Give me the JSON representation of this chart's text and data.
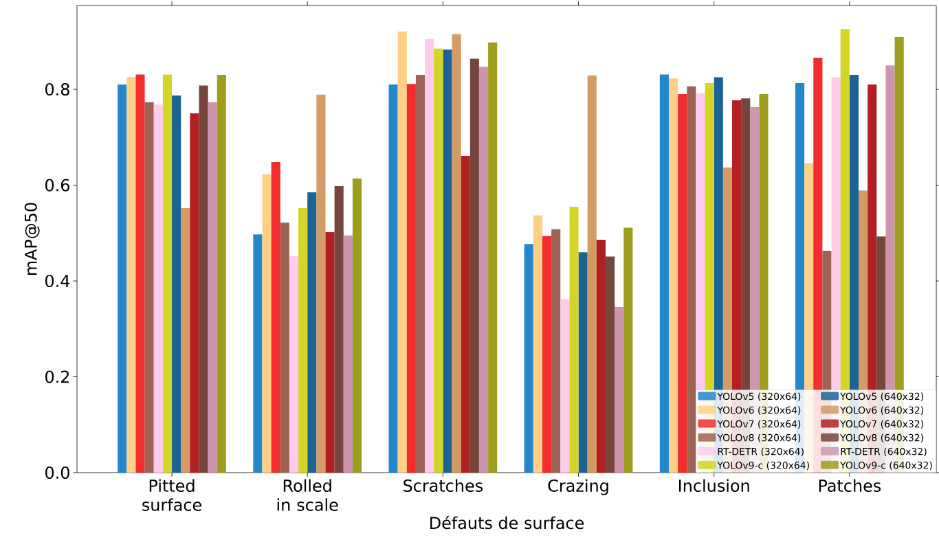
{
  "chart_data": {
    "type": "bar",
    "xlabel": "Défauts de surface",
    "ylabel": "mAP@50",
    "categories": [
      "Pitted surface",
      "Rolled in scale",
      "Scratches",
      "Crazing",
      "Inclusion",
      "Patches"
    ],
    "ylim": [
      0,
      0.975
    ],
    "yticks": [
      {
        "value": 0,
        "label": "0.0"
      },
      0.2,
      0.4,
      0.6,
      0.8
    ],
    "grid": false,
    "legend": "bottom right",
    "series": [
      {
        "name": "YOLOv5 (320x64)",
        "color": "#2387cd",
        "values": [
          0.81,
          0.497,
          0.81,
          0.477,
          0.831,
          0.813
        ]
      },
      {
        "name": "YOLOv6 (320x64)",
        "color": "#fdd086",
        "values": [
          0.826,
          0.623,
          0.921,
          0.537,
          0.823,
          0.646
        ]
      },
      {
        "name": "YOLOv7 (320x64)",
        "color": "#f22d2d",
        "values": [
          0.831,
          0.648,
          0.811,
          0.494,
          0.79,
          0.866
        ]
      },
      {
        "name": "YOLOv8 (320x64)",
        "color": "#9e6355",
        "values": [
          0.773,
          0.522,
          0.83,
          0.508,
          0.806,
          0.463
        ]
      },
      {
        "name": "RT-DETR (320x64)",
        "color": "#fdcced",
        "values": [
          0.768,
          0.452,
          0.905,
          0.362,
          0.792,
          0.825
        ]
      },
      {
        "name": "YOLOv9-c (320x64)",
        "color": "#d4d526",
        "values": [
          0.831,
          0.552,
          0.885,
          0.555,
          0.813,
          0.926
        ]
      },
      {
        "name": "YOLOv5 (640x32)",
        "color": "#1c6395",
        "values": [
          0.787,
          0.585,
          0.883,
          0.46,
          0.825,
          0.83
        ]
      },
      {
        "name": "YOLOv6 (640x32)",
        "color": "#d49b65",
        "values": [
          0.552,
          0.789,
          0.915,
          0.829,
          0.637,
          0.589
        ]
      },
      {
        "name": "YOLOv7 (640x32)",
        "color": "#b22122",
        "values": [
          0.75,
          0.502,
          0.661,
          0.486,
          0.777,
          0.81
        ]
      },
      {
        "name": "YOLOv8 (640x32)",
        "color": "#74463c",
        "values": [
          0.808,
          0.598,
          0.864,
          0.451,
          0.781,
          0.493
        ]
      },
      {
        "name": "RT-DETR (640x32)",
        "color": "#cd96ae",
        "values": [
          0.773,
          0.495,
          0.847,
          0.346,
          0.763,
          0.85
        ]
      },
      {
        "name": "YOLOv9-c (640x32)",
        "color": "#9e9e1e",
        "values": [
          0.83,
          0.614,
          0.898,
          0.511,
          0.79,
          0.909
        ]
      }
    ]
  }
}
